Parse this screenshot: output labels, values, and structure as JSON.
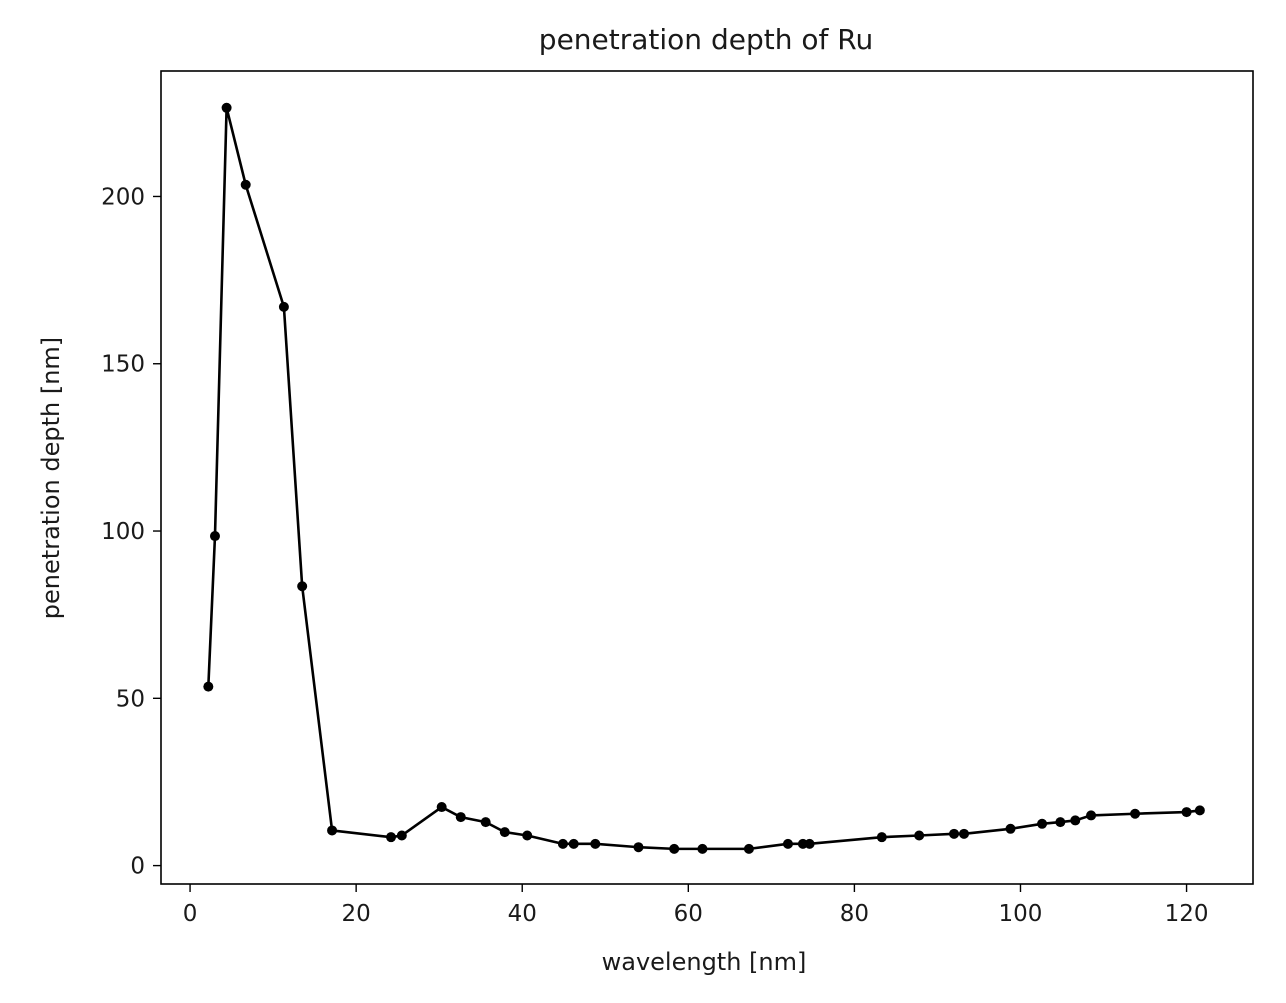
{
  "chart_data": {
    "type": "line",
    "title": "penetration depth of Ru",
    "xlabel": "wavelength [nm]",
    "ylabel": "penetration depth [nm]",
    "xlim": [
      -3.5,
      128.0
    ],
    "ylim": [
      -5.5,
      237.5
    ],
    "xticks": [
      0,
      20,
      40,
      60,
      80,
      100,
      120
    ],
    "yticks": [
      0,
      50,
      100,
      150,
      200
    ],
    "grid": false,
    "line_color": "#000000",
    "marker": "dot",
    "series": [
      {
        "x": [
          2.2,
          3.0,
          4.4,
          6.7,
          11.3,
          13.5,
          17.1,
          24.2,
          25.5,
          30.3,
          32.6,
          35.6,
          37.9,
          40.6,
          44.9,
          46.2,
          48.8,
          54.0,
          58.3,
          61.7,
          67.3,
          72.0,
          73.8,
          74.6,
          83.3,
          87.8,
          92.0,
          93.2,
          98.8,
          102.6,
          104.8,
          106.6,
          108.5,
          113.8,
          120.0,
          121.6
        ],
        "y": [
          53.5,
          98.5,
          226.5,
          203.5,
          167.0,
          83.5,
          10.5,
          8.5,
          9.0,
          17.5,
          14.5,
          13.0,
          10.0,
          9.0,
          6.5,
          6.5,
          6.5,
          5.5,
          5.0,
          5.0,
          5.0,
          6.5,
          6.5,
          6.5,
          8.5,
          9.0,
          9.5,
          9.5,
          11.0,
          12.5,
          13.0,
          13.5,
          15.0,
          15.5,
          16.0,
          16.5
        ]
      }
    ]
  }
}
